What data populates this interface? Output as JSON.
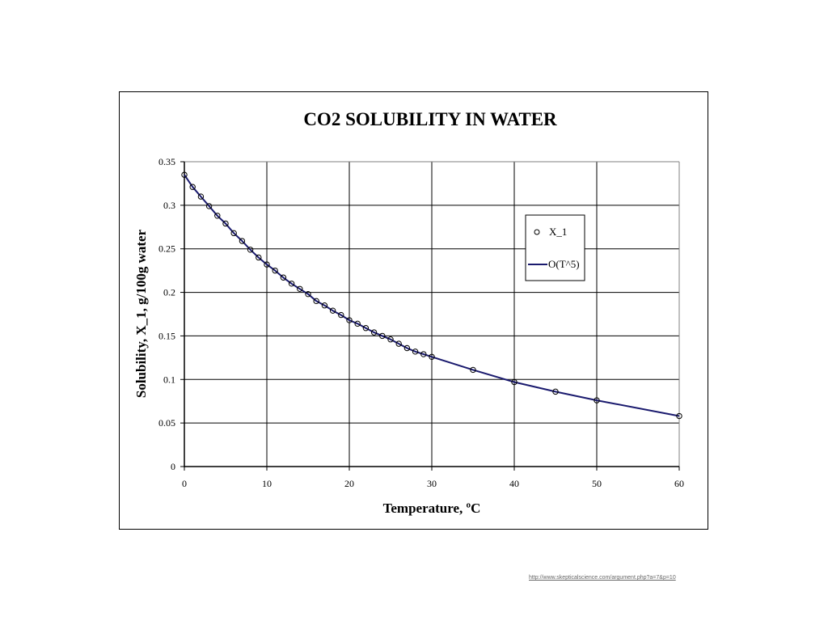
{
  "chart_data": {
    "type": "scatter",
    "title": "CO2 SOLUBILITY IN WATER",
    "xlabel": "Temperature, ºC",
    "ylabel": "Solubility, X_1, g/100g water",
    "xlim": [
      0,
      60
    ],
    "ylim": [
      0,
      0.35
    ],
    "x_ticks": [
      "0",
      "10",
      "20",
      "30",
      "40",
      "50",
      "60"
    ],
    "y_ticks": [
      "0",
      "0.05",
      "0.1",
      "0.15",
      "0.2",
      "0.25",
      "0.3",
      "0.35"
    ],
    "grid": true,
    "legend_position": "top-right",
    "series": [
      {
        "name": "X_1",
        "kind": "markers",
        "marker": "open-circle",
        "color": "#000000",
        "x": [
          0,
          1,
          2,
          3,
          4,
          5,
          6,
          7,
          8,
          9,
          10,
          11,
          12,
          13,
          14,
          15,
          16,
          17,
          18,
          19,
          20,
          21,
          22,
          23,
          24,
          25,
          26,
          27,
          28,
          29,
          30,
          35,
          40,
          45,
          50,
          60
        ],
        "y": [
          0.335,
          0.321,
          0.31,
          0.299,
          0.288,
          0.279,
          0.268,
          0.259,
          0.249,
          0.24,
          0.232,
          0.225,
          0.217,
          0.21,
          0.204,
          0.198,
          0.19,
          0.185,
          0.179,
          0.174,
          0.168,
          0.164,
          0.159,
          0.154,
          0.15,
          0.146,
          0.141,
          0.136,
          0.132,
          0.129,
          0.126,
          0.111,
          0.097,
          0.086,
          0.076,
          0.058
        ]
      },
      {
        "name": "O(T^5)",
        "kind": "line",
        "color": "#1a1a6e",
        "x": [
          0,
          1,
          2,
          3,
          4,
          5,
          6,
          7,
          8,
          9,
          10,
          11,
          12,
          13,
          14,
          15,
          16,
          17,
          18,
          19,
          20,
          21,
          22,
          23,
          24,
          25,
          26,
          27,
          28,
          29,
          30,
          35,
          40,
          45,
          50,
          60
        ],
        "y": [
          0.335,
          0.321,
          0.31,
          0.299,
          0.288,
          0.279,
          0.268,
          0.259,
          0.249,
          0.24,
          0.232,
          0.225,
          0.217,
          0.21,
          0.204,
          0.198,
          0.19,
          0.185,
          0.179,
          0.174,
          0.168,
          0.164,
          0.159,
          0.154,
          0.15,
          0.146,
          0.141,
          0.136,
          0.132,
          0.129,
          0.126,
          0.111,
          0.097,
          0.086,
          0.076,
          0.058
        ]
      }
    ]
  },
  "source_url": "http://www.skepticalscience.com/argument.php?a=7&p=10"
}
